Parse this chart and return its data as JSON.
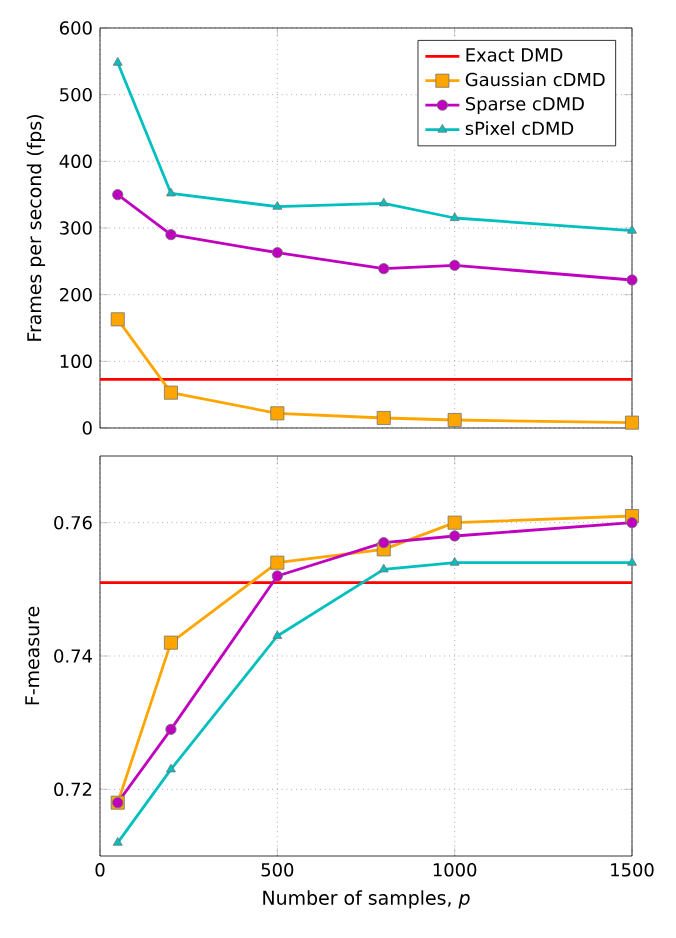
{
  "chart_data": [
    {
      "type": "line",
      "ylabel": "Frames per second (fps)",
      "xlim": [
        0,
        1500
      ],
      "xticks": [
        0,
        500,
        1000,
        1500
      ],
      "ylim": [
        0,
        600
      ],
      "yticks": [
        0,
        100,
        200,
        300,
        400,
        500,
        600
      ],
      "tick_labels": "y",
      "grid": true,
      "legend": "top right",
      "x": [
        50,
        200,
        500,
        800,
        1000,
        1500
      ],
      "series": [
        {
          "name": "Gaussian cDMD",
          "color": "#ffa500",
          "marker": "square",
          "values": [
            163,
            53,
            22,
            15,
            12,
            8
          ]
        },
        {
          "name": "Sparse cDMD",
          "color": "#bf00bf",
          "marker": "circle",
          "values": [
            350,
            290,
            263,
            239,
            244,
            222
          ]
        },
        {
          "name": "sPixel cDMD",
          "color": "#00bfbf",
          "marker": "triangle",
          "values": [
            548,
            352,
            332,
            337,
            315,
            296
          ]
        }
      ],
      "ref_lines": [
        {
          "axis": "y",
          "value": 73,
          "label": "Exact DMD",
          "color": "#ff0000"
        }
      ]
    },
    {
      "type": "line",
      "xlabel": "Number of samples, *p*",
      "ylabel": "F-measure",
      "xlim": [
        0,
        1500
      ],
      "xticks": [
        0,
        500,
        1000,
        1500
      ],
      "ylim": [
        0.71,
        0.77
      ],
      "yticks": [
        0.72,
        0.74,
        0.76
      ],
      "grid": true,
      "x": [
        50,
        200,
        500,
        800,
        1000,
        1500
      ],
      "series": [
        {
          "color": "#ffa500",
          "marker": "square",
          "values": [
            0.718,
            0.742,
            0.754,
            0.756,
            0.76,
            0.761
          ]
        },
        {
          "color": "#bf00bf",
          "marker": "circle",
          "values": [
            0.718,
            0.729,
            0.752,
            0.757,
            0.758,
            0.76
          ]
        },
        {
          "color": "#00bfbf",
          "marker": "triangle",
          "values": [
            0.712,
            0.723,
            0.743,
            0.753,
            0.754,
            0.754
          ]
        }
      ],
      "ref_lines": [
        {
          "axis": "y",
          "value": 0.751,
          "color": "#ff0000"
        }
      ]
    }
  ]
}
